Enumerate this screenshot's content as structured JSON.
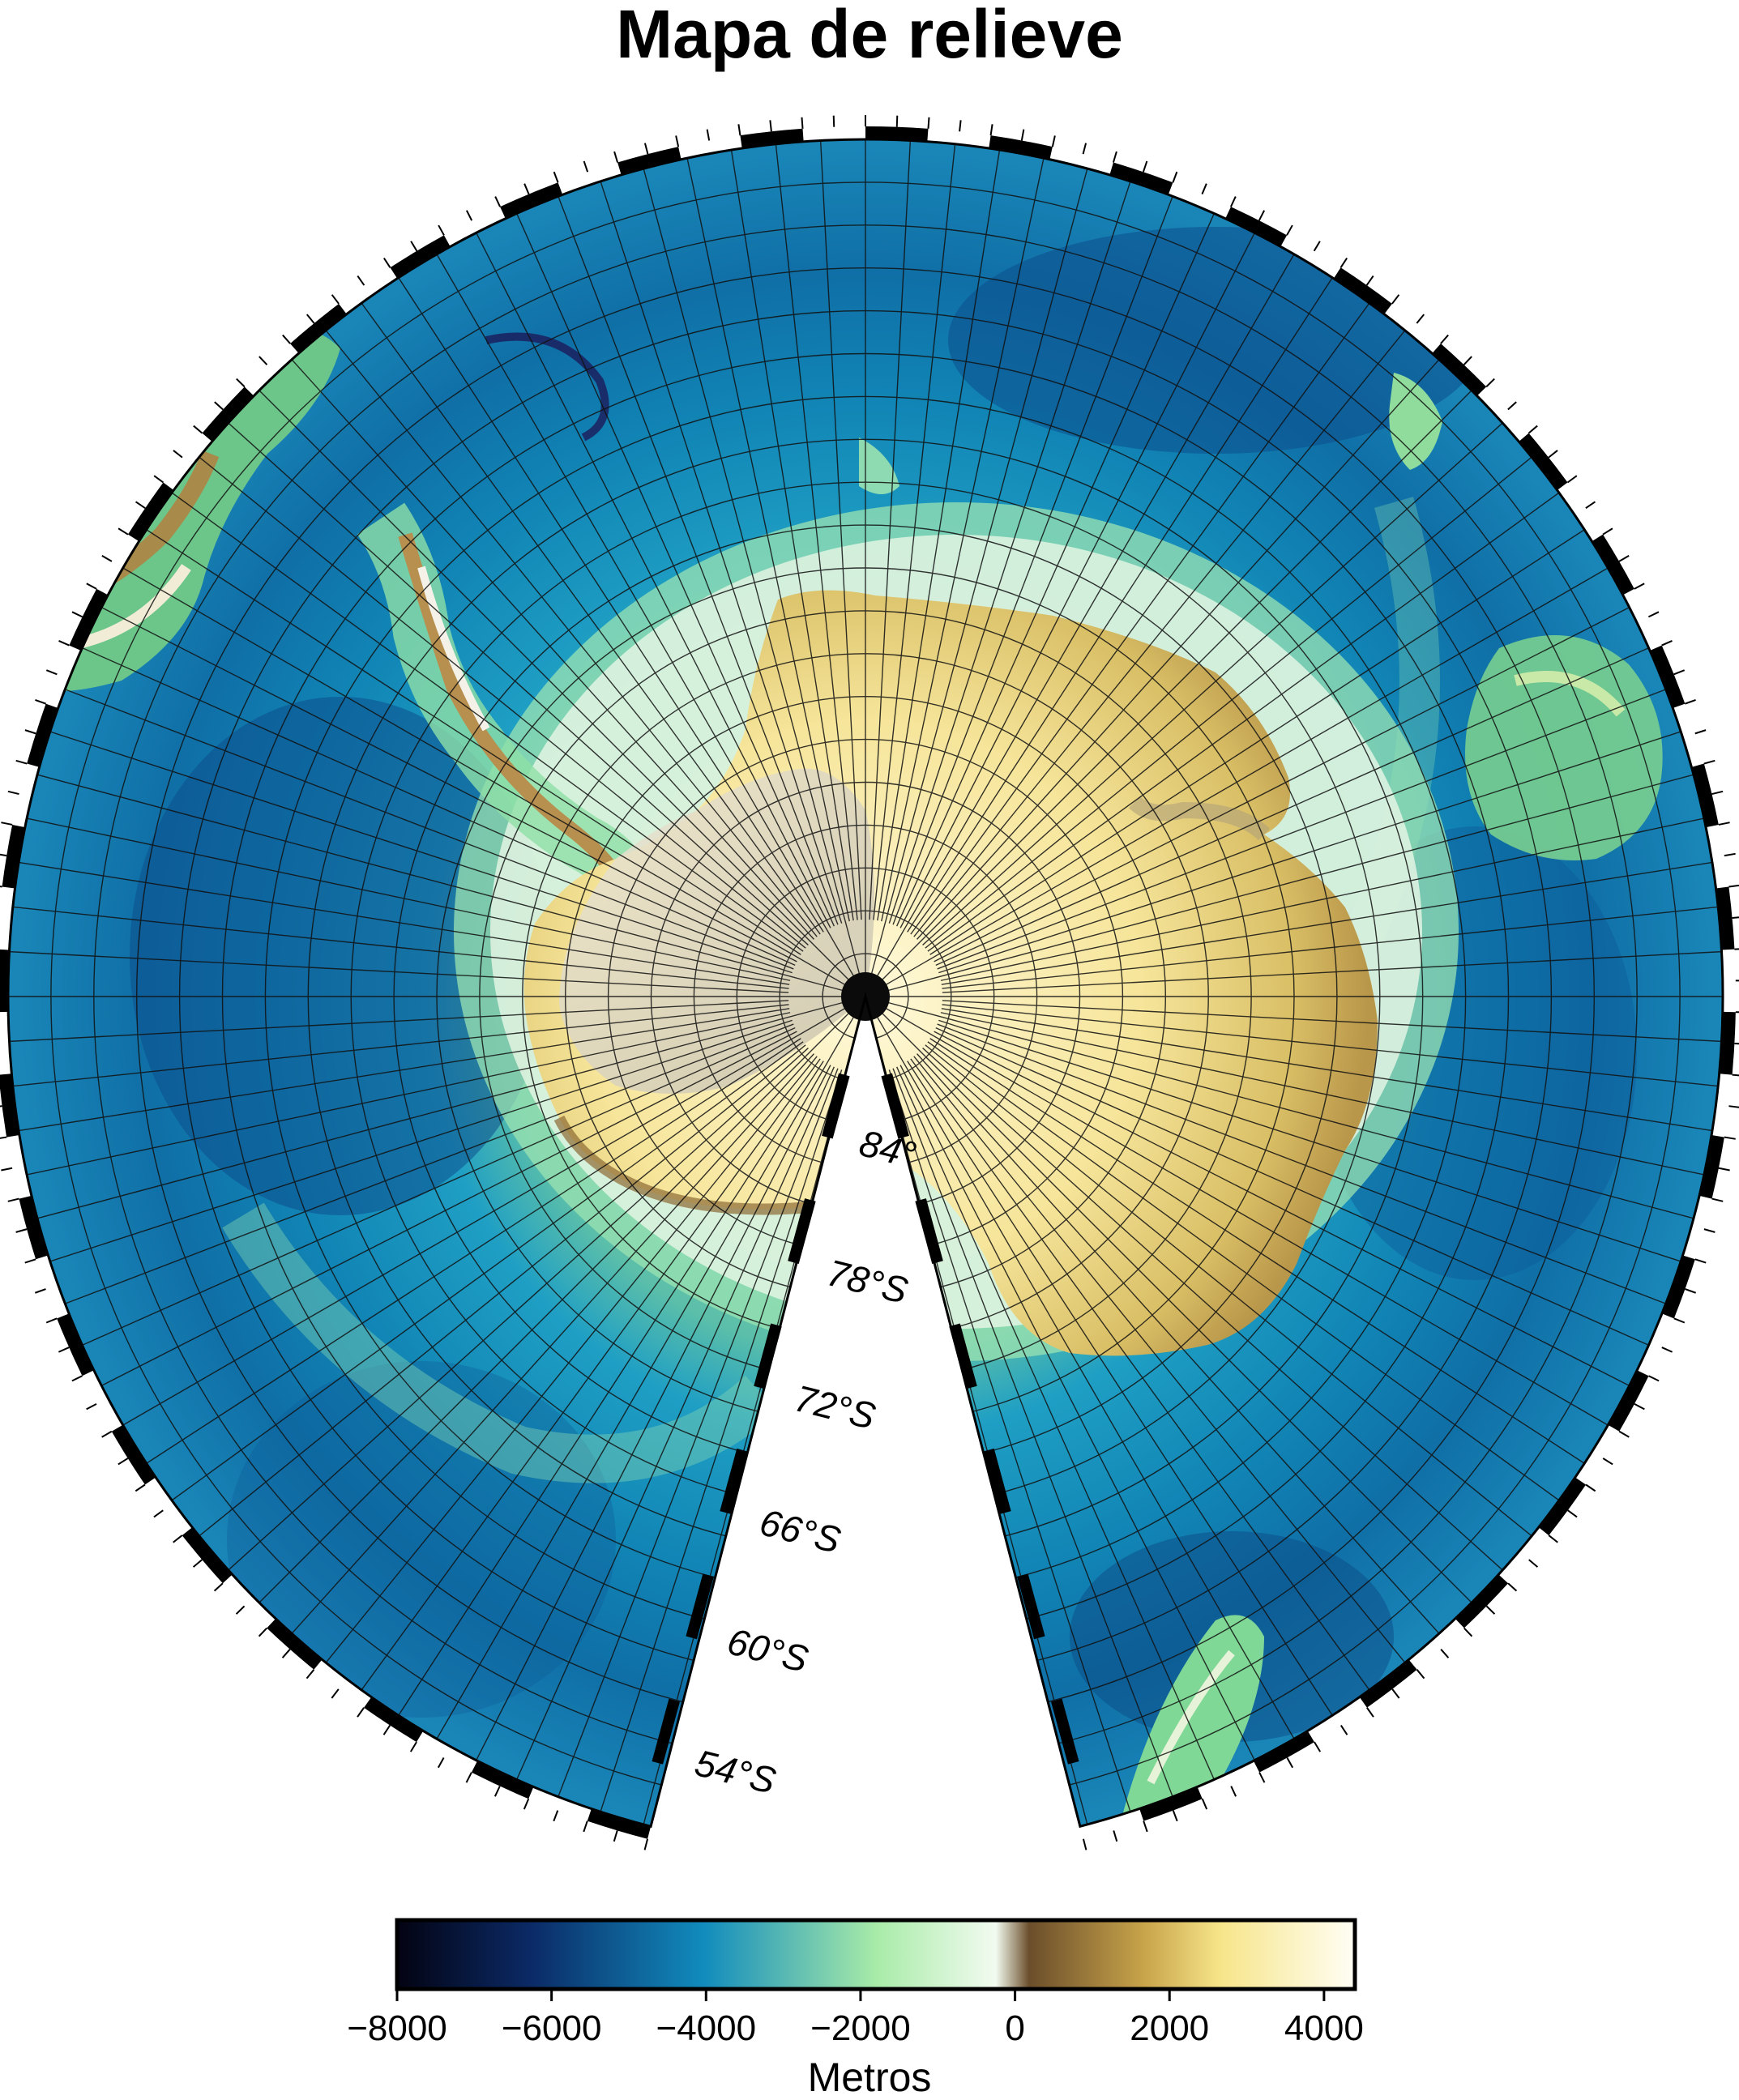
{
  "map": {
    "title": "Mapa de relieve",
    "projection": "south-polar azimuthal (conic wedge)",
    "latitude_labels": [
      "54°S",
      "60°S",
      "66°S",
      "72°S",
      "78°S",
      "84°"
    ],
    "features": [
      "antarctica-icon",
      "south-america-icon",
      "australia-icon",
      "new-zealand-icon",
      "africa-icon"
    ]
  },
  "colorbar": {
    "label": "Metros",
    "ticks": [
      "−8000",
      "−6000",
      "−4000",
      "−2000",
      "0",
      "2000",
      "4000"
    ],
    "range": [
      -8000,
      4400
    ],
    "colors": {
      "deep": "#030312",
      "navy": "#0b2a66",
      "ocean": "#118bbd",
      "shelf": "#a8eba8",
      "coast": "#f2fbf0",
      "low_land": "#6b4e2b",
      "land": "#c8a44a",
      "high_land": "#f7e58a",
      "peak": "#fffef5"
    }
  }
}
